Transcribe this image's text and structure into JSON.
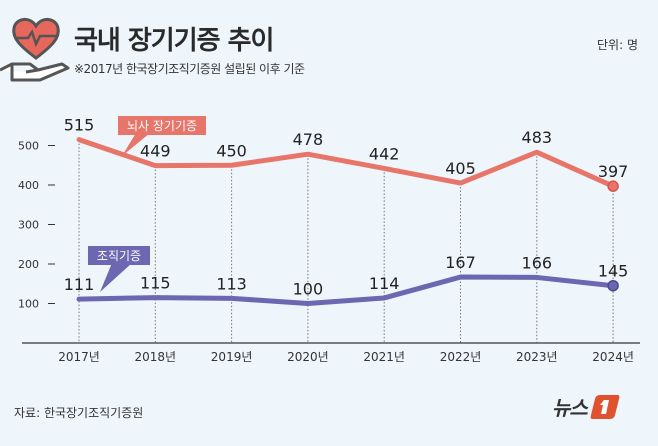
{
  "header": {
    "title": "국내 장기기증 추이",
    "subtitle": "※2017년 한국장기조직기증원 설립된 이후 기준",
    "unit": "단위: 명"
  },
  "footer": {
    "source": "자료: 한국장기조직기증원",
    "logo_text": "뉴스"
  },
  "colors": {
    "brain_death": "#e8756a",
    "tissue": "#6b67b0",
    "background": "#eef5fb",
    "logo": "#e0522f"
  },
  "chart_data": {
    "type": "line",
    "categories": [
      "2017년",
      "2018년",
      "2019년",
      "2020년",
      "2021년",
      "2022년",
      "2023년",
      "2024년"
    ],
    "series": [
      {
        "name": "뇌사 장기기증",
        "values": [
          515,
          449,
          450,
          478,
          442,
          405,
          483,
          397
        ],
        "color": "#e8756a"
      },
      {
        "name": "조직기증",
        "values": [
          111,
          115,
          113,
          100,
          114,
          167,
          166,
          145
        ],
        "color": "#6b67b0"
      }
    ],
    "yticks": [
      100,
      200,
      300,
      400,
      500
    ],
    "ylim": [
      0,
      600
    ],
    "grid": "vertical dotted",
    "legend": "callout labels"
  }
}
